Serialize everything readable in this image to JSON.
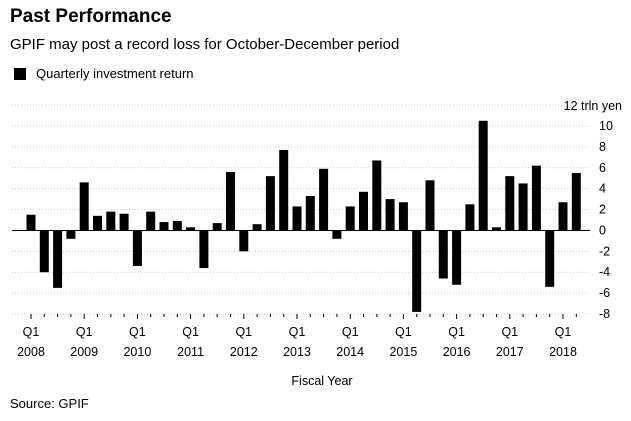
{
  "header": {
    "title": "Past Performance",
    "subtitle": "GPIF may post a record loss for October-December period"
  },
  "source": "Source: GPIF",
  "chart_data": {
    "type": "bar",
    "legend": [
      "Quarterly investment return"
    ],
    "legend_position": "top-left",
    "xlabel": "Fiscal Year",
    "ylabel": "",
    "y_unit_label": "12 trln yen",
    "ylim": [
      -8,
      12
    ],
    "y_ticks": [
      -8,
      -6,
      -4,
      -2,
      0,
      2,
      4,
      6,
      8,
      10
    ],
    "grid": true,
    "bar_color": "#000000",
    "x_tick_labels": [
      {
        "quarter": "Q1",
        "year": "2008"
      },
      {
        "quarter": "Q1",
        "year": "2009"
      },
      {
        "quarter": "Q1",
        "year": "2010"
      },
      {
        "quarter": "Q1",
        "year": "2011"
      },
      {
        "quarter": "Q1",
        "year": "2012"
      },
      {
        "quarter": "Q1",
        "year": "2013"
      },
      {
        "quarter": "Q1",
        "year": "2014"
      },
      {
        "quarter": "Q1",
        "year": "2015"
      },
      {
        "quarter": "Q1",
        "year": "2016"
      },
      {
        "quarter": "Q1",
        "year": "2017"
      },
      {
        "quarter": "Q1",
        "year": "2018"
      }
    ],
    "series": [
      {
        "values": [
          1.5,
          -4.0,
          -5.5,
          -0.8,
          4.6,
          1.4,
          1.8,
          1.6,
          -3.4,
          1.8,
          0.8,
          0.9,
          0.3,
          -3.6,
          0.7,
          5.6,
          -2.0,
          0.6,
          5.2,
          7.7,
          2.3,
          3.3,
          5.9,
          -0.8,
          2.3,
          3.7,
          6.7,
          3.0,
          2.7,
          -7.8,
          4.8,
          -4.6,
          -5.2,
          2.5,
          10.5,
          0.3,
          5.2,
          4.5,
          6.2,
          -5.4,
          2.7,
          5.5
        ]
      }
    ]
  }
}
